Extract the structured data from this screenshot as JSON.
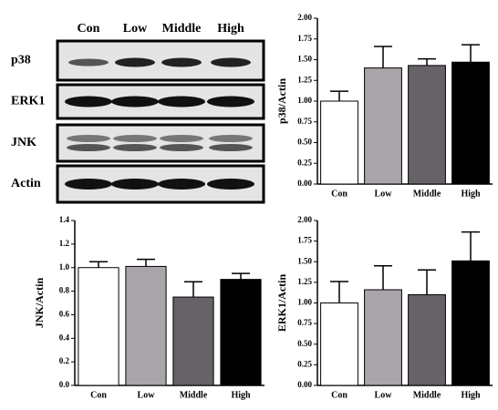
{
  "blot": {
    "lanes": [
      "Con",
      "Low",
      "Middle",
      "High"
    ],
    "rows": [
      "p38",
      "ERK1",
      "JNK",
      "Actin"
    ]
  },
  "chart_data": [
    {
      "type": "bar",
      "ylabel": "p38/Actin",
      "categories": [
        "Con",
        "Low",
        "Middle",
        "High"
      ],
      "values": [
        1.0,
        1.4,
        1.43,
        1.47
      ],
      "errors": [
        0.12,
        0.26,
        0.08,
        0.21
      ],
      "colors": [
        "#ffffff",
        "#aaa5aa",
        "#676267",
        "#000000"
      ],
      "ylim": [
        0,
        2
      ],
      "yticks": [
        {
          "value": 0,
          "label": "0.00"
        },
        {
          "value": 0.25,
          "label": "0.25"
        },
        {
          "value": 0.5,
          "label": "0.50"
        },
        {
          "value": 0.75,
          "label": "0.75"
        },
        {
          "value": 1,
          "label": "1.00"
        },
        {
          "value": 1.25,
          "label": "1.25"
        },
        {
          "value": 1.5,
          "label": "1.50"
        },
        {
          "value": 1.75,
          "label": "1.75"
        },
        {
          "value": 2,
          "label": "2.00"
        }
      ]
    },
    {
      "type": "bar",
      "ylabel": "JNK/Actin",
      "categories": [
        "Con",
        "Low",
        "Middle",
        "High"
      ],
      "values": [
        1.0,
        1.01,
        0.75,
        0.9
      ],
      "errors": [
        0.05,
        0.06,
        0.13,
        0.05
      ],
      "colors": [
        "#ffffff",
        "#aaa5aa",
        "#676267",
        "#000000"
      ],
      "ylim": [
        0,
        1.4
      ],
      "yticks": [
        {
          "value": 0,
          "label": "0.0"
        },
        0.2,
        0.4,
        0.6,
        0.8,
        {
          "value": 1,
          "label": "1.0"
        },
        1.2,
        1.4
      ]
    },
    {
      "type": "bar",
      "ylabel": "ERK1/Actin",
      "categories": [
        "Con",
        "Low",
        "Middle",
        "High"
      ],
      "values": [
        1.0,
        1.16,
        1.1,
        1.51
      ],
      "errors": [
        0.26,
        0.29,
        0.3,
        0.35
      ],
      "colors": [
        "#ffffff",
        "#aaa5aa",
        "#676267",
        "#000000"
      ],
      "ylim": [
        0,
        2
      ],
      "yticks": [
        {
          "value": 0,
          "label": "0.00"
        },
        {
          "value": 0.25,
          "label": "0.25"
        },
        {
          "value": 0.5,
          "label": "0.50"
        },
        {
          "value": 0.75,
          "label": "0.75"
        },
        {
          "value": 1,
          "label": "1.00"
        },
        {
          "value": 1.25,
          "label": "1.25"
        },
        {
          "value": 1.5,
          "label": "1.50"
        },
        {
          "value": 1.75,
          "label": "1.75"
        },
        {
          "value": 2,
          "label": "2.00"
        }
      ]
    }
  ]
}
